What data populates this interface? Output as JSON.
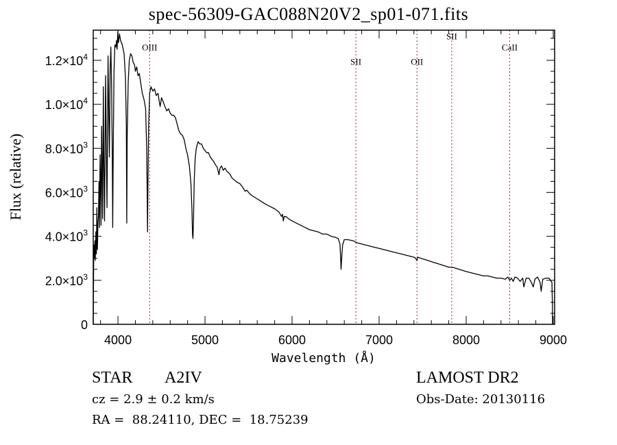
{
  "chart_data": {
    "type": "line",
    "title": "spec-56309-GAC088N20V2_sp01-071.fits",
    "xlabel": "Wavelength (Å)",
    "ylabel": "Flux (relative)",
    "xlim": [
      3716,
      9016
    ],
    "ylim": [
      0,
      13370
    ],
    "x_ticks": [
      4000,
      5000,
      6000,
      7000,
      8000,
      9000
    ],
    "x_tick_labels": [
      "4000",
      "5000",
      "6000",
      "7000",
      "8000",
      "9000"
    ],
    "y_ticks": [
      0,
      2000,
      4000,
      6000,
      8000,
      10000,
      12000
    ],
    "y_tick_labels": [
      {
        "mant": "0",
        "exp": ""
      },
      {
        "mant": "2.0×10",
        "exp": "3"
      },
      {
        "mant": "4.0×10",
        "exp": "3"
      },
      {
        "mant": "6.0×10",
        "exp": "3"
      },
      {
        "mant": "8.0×10",
        "exp": "3"
      },
      {
        "mant": "1.0×10",
        "exp": "4"
      },
      {
        "mant": "1.2×10",
        "exp": "4"
      }
    ],
    "grid": false,
    "line_color": "#000000",
    "marker_line_color": "#8b2a2a",
    "spectral_lines": [
      {
        "label": "OIII",
        "wavelength": 4364,
        "label_flux": 12450
      },
      {
        "label": "SII",
        "wavelength": 6733,
        "label_flux": 11800
      },
      {
        "label": "OII",
        "wavelength": 7435,
        "label_flux": 11800
      },
      {
        "label": "SII",
        "wavelength": 7834,
        "label_flux": 12950
      },
      {
        "label": "CaII",
        "wavelength": 8500,
        "label_flux": 12450
      }
    ],
    "series": [
      {
        "name": "flux",
        "points": [
          [
            3716,
            0
          ],
          [
            3718,
            1400
          ],
          [
            3722,
            3600
          ],
          [
            3728,
            3000
          ],
          [
            3735,
            3800
          ],
          [
            3740,
            2900
          ],
          [
            3746,
            4200
          ],
          [
            3752,
            3200
          ],
          [
            3758,
            5300
          ],
          [
            3764,
            3400
          ],
          [
            3770,
            4600
          ],
          [
            3776,
            4900
          ],
          [
            3782,
            6500
          ],
          [
            3788,
            4400
          ],
          [
            3795,
            7700
          ],
          [
            3800,
            6400
          ],
          [
            3806,
            4500
          ],
          [
            3812,
            9000
          ],
          [
            3818,
            6900
          ],
          [
            3824,
            4800
          ],
          [
            3832,
            10800
          ],
          [
            3838,
            7300
          ],
          [
            3846,
            4700
          ],
          [
            3858,
            11300
          ],
          [
            3866,
            8200
          ],
          [
            3874,
            5300
          ],
          [
            3886,
            12200
          ],
          [
            3896,
            9000
          ],
          [
            3902,
            7600
          ],
          [
            3910,
            11500
          ],
          [
            3918,
            12600
          ],
          [
            3926,
            11000
          ],
          [
            3934,
            8000
          ],
          [
            3940,
            4400
          ],
          [
            3946,
            8000
          ],
          [
            3955,
            11500
          ],
          [
            3965,
            12700
          ],
          [
            3975,
            12600
          ],
          [
            3984,
            12900
          ],
          [
            3990,
            12500
          ],
          [
            3998,
            13300
          ],
          [
            4006,
            12800
          ],
          [
            4018,
            13200
          ],
          [
            4030,
            12900
          ],
          [
            4050,
            12700
          ],
          [
            4070,
            12300
          ],
          [
            4086,
            11200
          ],
          [
            4096,
            9000
          ],
          [
            4101,
            4600
          ],
          [
            4106,
            8500
          ],
          [
            4118,
            11000
          ],
          [
            4130,
            12000
          ],
          [
            4145,
            12300
          ],
          [
            4160,
            12200
          ],
          [
            4175,
            11900
          ],
          [
            4190,
            11800
          ],
          [
            4200,
            11500
          ],
          [
            4215,
            11700
          ],
          [
            4230,
            11300
          ],
          [
            4245,
            11400
          ],
          [
            4260,
            11000
          ],
          [
            4280,
            10500
          ],
          [
            4300,
            10200
          ],
          [
            4318,
            9800
          ],
          [
            4330,
            8000
          ],
          [
            4336,
            5900
          ],
          [
            4340,
            4200
          ],
          [
            4344,
            6000
          ],
          [
            4352,
            9000
          ],
          [
            4364,
            10500
          ],
          [
            4380,
            10800
          ],
          [
            4400,
            10600
          ],
          [
            4420,
            10700
          ],
          [
            4440,
            10400
          ],
          [
            4460,
            10500
          ],
          [
            4475,
            10100
          ],
          [
            4485,
            9900
          ],
          [
            4500,
            10300
          ],
          [
            4520,
            10100
          ],
          [
            4540,
            9900
          ],
          [
            4560,
            9700
          ],
          [
            4580,
            9800
          ],
          [
            4600,
            9600
          ],
          [
            4620,
            9500
          ],
          [
            4640,
            9500
          ],
          [
            4660,
            9400
          ],
          [
            4680,
            9100
          ],
          [
            4700,
            8800
          ],
          [
            4720,
            8650
          ],
          [
            4740,
            8600
          ],
          [
            4760,
            8400
          ],
          [
            4780,
            8000
          ],
          [
            4800,
            7700
          ],
          [
            4820,
            7200
          ],
          [
            4838,
            6400
          ],
          [
            4850,
            5200
          ],
          [
            4856,
            4100
          ],
          [
            4862,
            3900
          ],
          [
            4868,
            4800
          ],
          [
            4876,
            6500
          ],
          [
            4886,
            7500
          ],
          [
            4900,
            8000
          ],
          [
            4920,
            8300
          ],
          [
            4940,
            8200
          ],
          [
            4960,
            8200
          ],
          [
            4980,
            8000
          ],
          [
            5000,
            7900
          ],
          [
            5020,
            7800
          ],
          [
            5040,
            7800
          ],
          [
            5060,
            7600
          ],
          [
            5080,
            7500
          ],
          [
            5100,
            7400
          ],
          [
            5120,
            7250
          ],
          [
            5140,
            7150
          ],
          [
            5160,
            6800
          ],
          [
            5172,
            7100
          ],
          [
            5190,
            7200
          ],
          [
            5210,
            7000
          ],
          [
            5230,
            7100
          ],
          [
            5250,
            6950
          ],
          [
            5270,
            6900
          ],
          [
            5290,
            6800
          ],
          [
            5310,
            6650
          ],
          [
            5340,
            6550
          ],
          [
            5370,
            6450
          ],
          [
            5400,
            6400
          ],
          [
            5430,
            6250
          ],
          [
            5460,
            6050
          ],
          [
            5480,
            6100
          ],
          [
            5510,
            5950
          ],
          [
            5540,
            5850
          ],
          [
            5580,
            5750
          ],
          [
            5620,
            5650
          ],
          [
            5660,
            5550
          ],
          [
            5700,
            5450
          ],
          [
            5750,
            5350
          ],
          [
            5800,
            5250
          ],
          [
            5850,
            5100
          ],
          [
            5880,
            4900
          ],
          [
            5890,
            5000
          ],
          [
            5900,
            4700
          ],
          [
            5910,
            4900
          ],
          [
            5930,
            4900
          ],
          [
            5960,
            4800
          ],
          [
            6000,
            4700
          ],
          [
            6050,
            4600
          ],
          [
            6100,
            4500
          ],
          [
            6150,
            4400
          ],
          [
            6200,
            4300
          ],
          [
            6250,
            4250
          ],
          [
            6300,
            4200
          ],
          [
            6350,
            4100
          ],
          [
            6400,
            4100
          ],
          [
            6450,
            4000
          ],
          [
            6500,
            3950
          ],
          [
            6530,
            3900
          ],
          [
            6550,
            3650
          ],
          [
            6558,
            3000
          ],
          [
            6563,
            2500
          ],
          [
            6570,
            3000
          ],
          [
            6580,
            3600
          ],
          [
            6600,
            3850
          ],
          [
            6640,
            3850
          ],
          [
            6700,
            3800
          ],
          [
            6750,
            3700
          ],
          [
            6800,
            3650
          ],
          [
            6850,
            3600
          ],
          [
            6900,
            3550
          ],
          [
            6950,
            3500
          ],
          [
            7000,
            3450
          ],
          [
            7050,
            3400
          ],
          [
            7100,
            3350
          ],
          [
            7150,
            3300
          ],
          [
            7200,
            3250
          ],
          [
            7250,
            3200
          ],
          [
            7300,
            3150
          ],
          [
            7350,
            3100
          ],
          [
            7400,
            3050
          ],
          [
            7420,
            3000
          ],
          [
            7435,
            2900
          ],
          [
            7445,
            3050
          ],
          [
            7480,
            3000
          ],
          [
            7520,
            2950
          ],
          [
            7560,
            2900
          ],
          [
            7600,
            2850
          ],
          [
            7640,
            2800
          ],
          [
            7680,
            2750
          ],
          [
            7720,
            2700
          ],
          [
            7760,
            2650
          ],
          [
            7800,
            2600
          ],
          [
            7840,
            2600
          ],
          [
            7880,
            2550
          ],
          [
            7920,
            2500
          ],
          [
            7960,
            2450
          ],
          [
            8000,
            2400
          ],
          [
            8050,
            2350
          ],
          [
            8100,
            2300
          ],
          [
            8150,
            2250
          ],
          [
            8200,
            2200
          ],
          [
            8250,
            2200
          ],
          [
            8300,
            2150
          ],
          [
            8350,
            2100
          ],
          [
            8400,
            2100
          ],
          [
            8450,
            2050
          ],
          [
            8480,
            2150
          ],
          [
            8500,
            2000
          ],
          [
            8520,
            2100
          ],
          [
            8540,
            1950
          ],
          [
            8560,
            2150
          ],
          [
            8590,
            2100
          ],
          [
            8620,
            1950
          ],
          [
            8650,
            2100
          ],
          [
            8662,
            1700
          ],
          [
            8690,
            2100
          ],
          [
            8720,
            2100
          ],
          [
            8750,
            1900
          ],
          [
            8770,
            1700
          ],
          [
            8790,
            2050
          ],
          [
            8820,
            2150
          ],
          [
            8850,
            1900
          ],
          [
            8862,
            1500
          ],
          [
            8880,
            2050
          ],
          [
            8920,
            2100
          ],
          [
            8950,
            2100
          ],
          [
            8970,
            2000
          ],
          [
            8985,
            1900
          ],
          [
            8990,
            1000
          ],
          [
            8992,
            0
          ]
        ]
      }
    ]
  },
  "info": {
    "object_class": "STAR",
    "subclass": "A2IV",
    "redshift": "cz = 2.9 ± 0.2 km/s",
    "coords": "RA =  88.24110, DEC =  18.75239",
    "survey": "LAMOST DR2",
    "obs_date": "Obs-Date: 20130116"
  }
}
